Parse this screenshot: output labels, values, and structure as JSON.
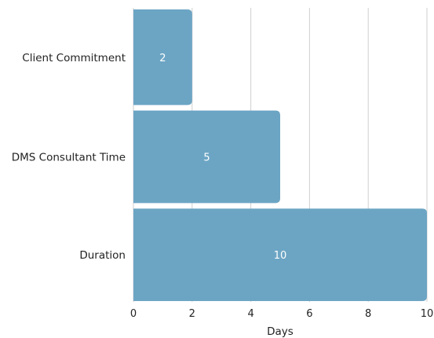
{
  "chart_data": {
    "type": "bar",
    "orientation": "horizontal",
    "categories": [
      "Client Commitment",
      "DMS Consultant Time",
      "Duration"
    ],
    "values": [
      2,
      5,
      10
    ],
    "data_labels": [
      "2",
      "5",
      "10"
    ],
    "title": "",
    "xlabel": "Days",
    "ylabel": "",
    "xlim": [
      0,
      10
    ],
    "xticks": [
      0,
      2,
      4,
      6,
      8,
      10
    ],
    "grid": "vertical",
    "legend": "none",
    "bar_color": "#6ca5c4",
    "grid_color": "#cfcfcf"
  }
}
